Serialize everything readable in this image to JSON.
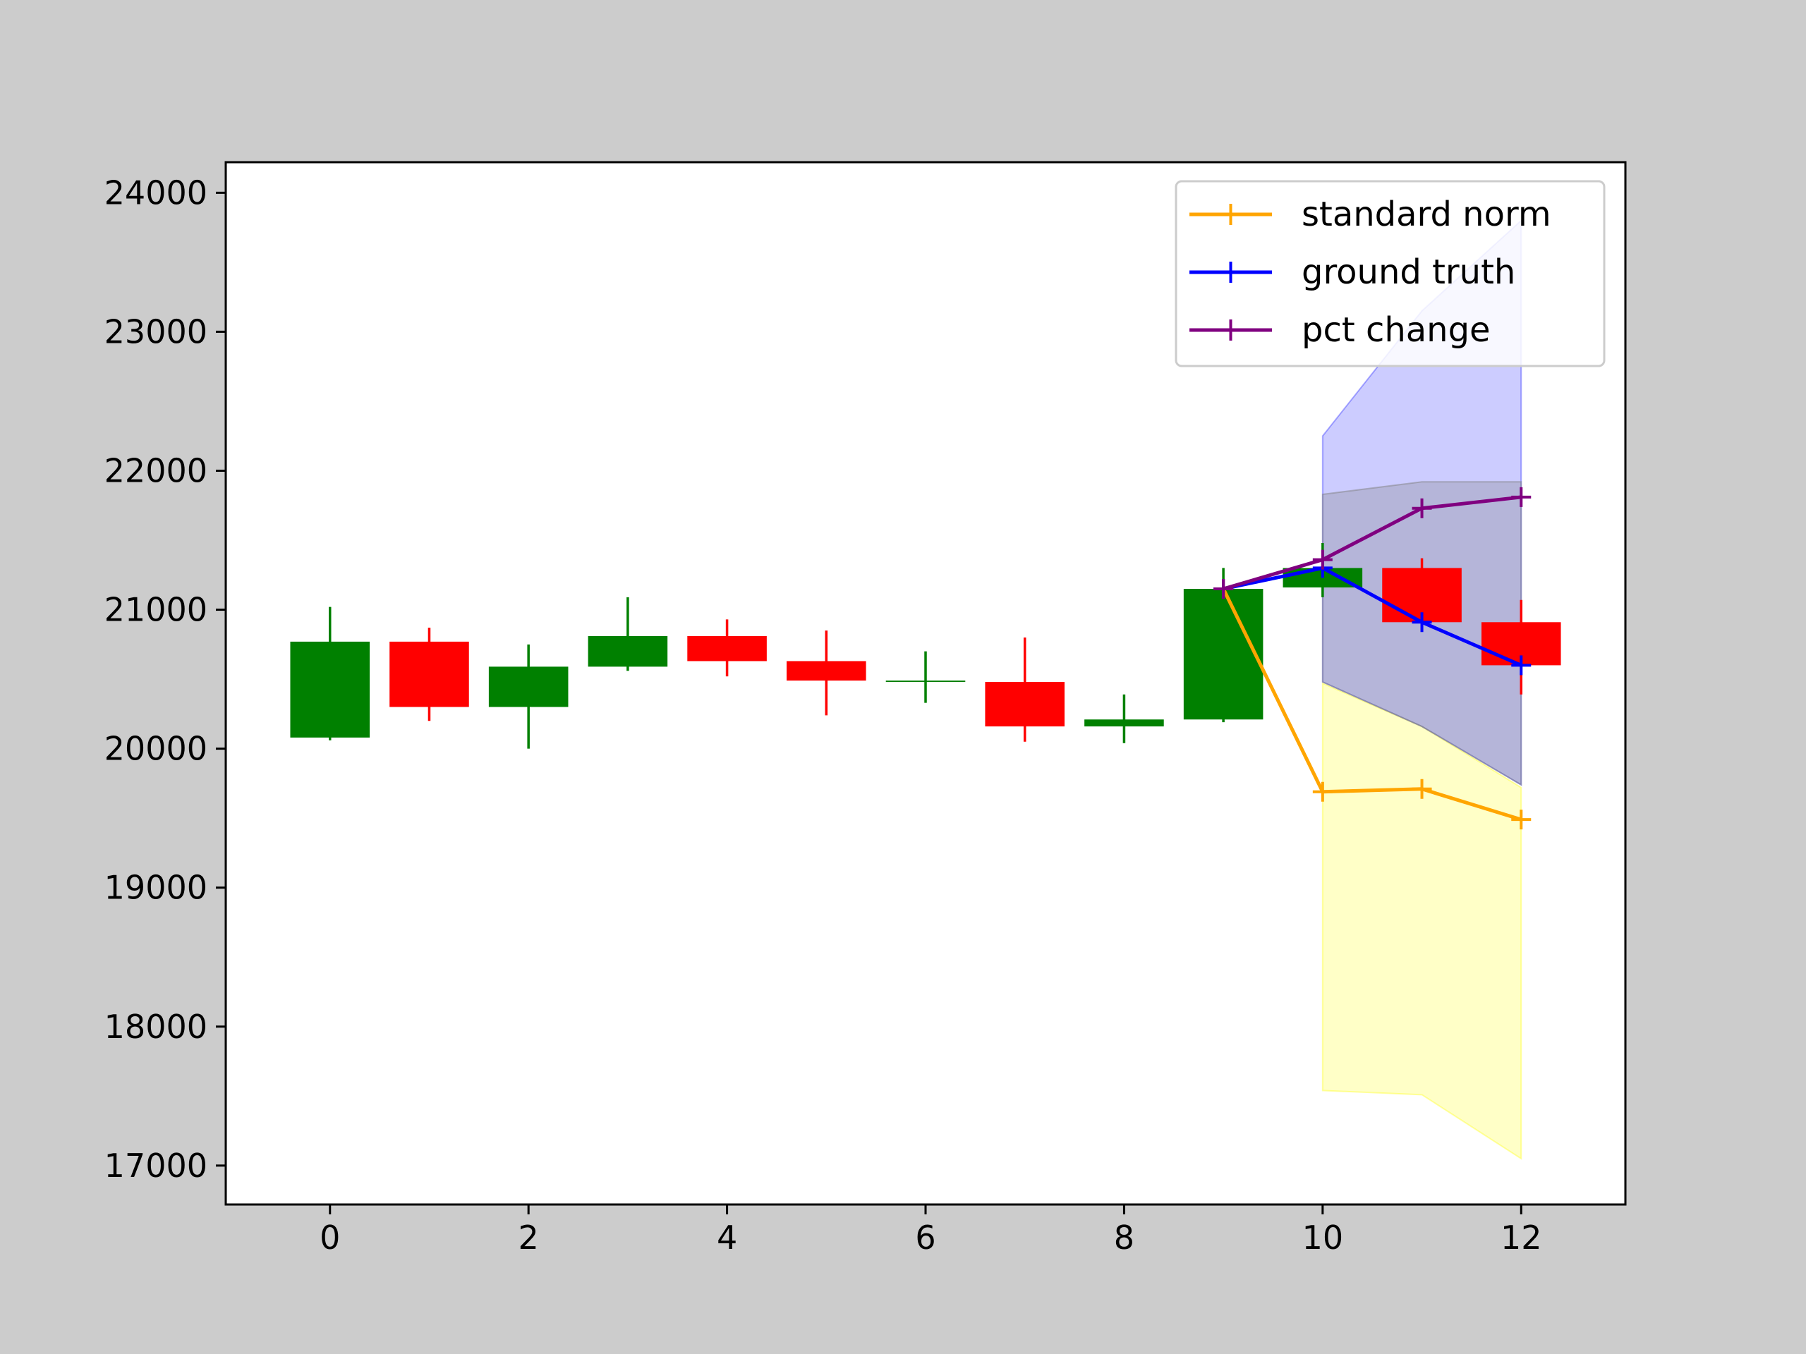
{
  "chart_data": {
    "type": "candlestick",
    "title": "",
    "xlabel": "",
    "ylabel": "",
    "xlim": [
      -1.05,
      13.05
    ],
    "ylim": [
      16720,
      24220
    ],
    "x_ticks": [
      0,
      2,
      4,
      6,
      8,
      10,
      12
    ],
    "y_ticks": [
      17000,
      18000,
      19000,
      20000,
      21000,
      22000,
      23000,
      24000
    ],
    "grid": false,
    "legend_position": "top-right",
    "candles": [
      {
        "x": 0,
        "open": 20080,
        "high": 21020,
        "low": 20060,
        "close": 20770
      },
      {
        "x": 1,
        "open": 20770,
        "high": 20870,
        "low": 20200,
        "close": 20300
      },
      {
        "x": 2,
        "open": 20300,
        "high": 20750,
        "low": 20000,
        "close": 20590
      },
      {
        "x": 3,
        "open": 20590,
        "high": 21090,
        "low": 20560,
        "close": 20810
      },
      {
        "x": 4,
        "open": 20810,
        "high": 20930,
        "low": 20520,
        "close": 20630
      },
      {
        "x": 5,
        "open": 20630,
        "high": 20850,
        "low": 20240,
        "close": 20490
      },
      {
        "x": 6,
        "open": 20490,
        "high": 20700,
        "low": 20330,
        "close": 20490
      },
      {
        "x": 7,
        "open": 20480,
        "high": 20800,
        "low": 20050,
        "close": 20160
      },
      {
        "x": 8,
        "open": 20160,
        "high": 20390,
        "low": 20040,
        "close": 20210
      },
      {
        "x": 9,
        "open": 20210,
        "high": 21300,
        "low": 20190,
        "close": 21150
      },
      {
        "x": 10,
        "open": 21160,
        "high": 21480,
        "low": 21090,
        "close": 21300
      },
      {
        "x": 11,
        "open": 21300,
        "high": 21370,
        "low": 20850,
        "close": 20910
      },
      {
        "x": 12,
        "open": 20910,
        "high": 21070,
        "low": 20390,
        "close": 20600
      }
    ],
    "bands": [
      {
        "name": "standard norm band",
        "color": "#ffff00",
        "opacity": 0.22,
        "x": [
          10,
          11,
          12
        ],
        "upper": [
          20470,
          20160,
          19720
        ],
        "lower": [
          17540,
          17510,
          17050
        ]
      },
      {
        "name": "ground truth band",
        "color": "#0000ff",
        "opacity": 0.2,
        "x": [
          10,
          11,
          12
        ],
        "upper": [
          22250,
          23150,
          23800
        ],
        "lower": [
          20480,
          20160,
          19740
        ]
      },
      {
        "name": "pct change band",
        "color": "#808080",
        "opacity": 0.3,
        "x": [
          10,
          11,
          12
        ],
        "upper": [
          21830,
          21920,
          21920
        ],
        "lower": [
          20480,
          20160,
          19740
        ]
      }
    ],
    "series": [
      {
        "name": "standard norm",
        "color": "#ffa500",
        "x": [
          9,
          10,
          11,
          12
        ],
        "values": [
          21150,
          19690,
          19710,
          19490
        ]
      },
      {
        "name": "ground truth",
        "color": "#0000ff",
        "x": [
          9,
          10,
          11,
          12
        ],
        "values": [
          21150,
          21300,
          20910,
          20600
        ]
      },
      {
        "name": "pct change",
        "color": "#800080",
        "x": [
          9,
          10,
          11,
          12
        ],
        "values": [
          21150,
          21360,
          21730,
          21810
        ]
      }
    ],
    "colors": {
      "up": "#008000",
      "down": "#ff0000"
    }
  }
}
